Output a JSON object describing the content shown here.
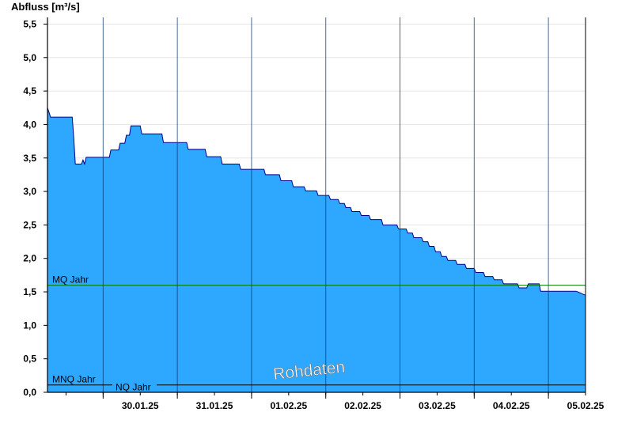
{
  "chart_data": {
    "type": "area",
    "ylabel": "Abfluss [m³/s]",
    "ylim": [
      0,
      5.6
    ],
    "yticks": [
      "0,0",
      "0,5",
      "1,0",
      "1,5",
      "2,0",
      "2,5",
      "3,0",
      "3,5",
      "4,0",
      "4,5",
      "5,0",
      "5,5"
    ],
    "xlim": [
      "29.01.25 06:00",
      "05.02.25 12:00"
    ],
    "day_labels": [
      "30.01.25",
      "31.01.25",
      "01.02.25",
      "02.02.25",
      "03.02.25",
      "04.02.25",
      "05.02.25"
    ],
    "grid": true,
    "series": [
      {
        "fill_color": "#2ea7ff",
        "line_color": "#00008b",
        "points": [
          [
            "29.01.25 06:00",
            4.25
          ],
          [
            "29.01.25 06:30",
            4.18
          ],
          [
            "29.01.25 07:00",
            4.11
          ],
          [
            "29.01.25 14:00",
            4.11
          ],
          [
            "29.01.25 14:30",
            3.8
          ],
          [
            "29.01.25 15:00",
            3.41
          ],
          [
            "29.01.25 17:00",
            3.41
          ],
          [
            "29.01.25 17:30",
            3.47
          ],
          [
            "29.01.25 18:00",
            3.41
          ],
          [
            "29.01.25 18:30",
            3.51
          ],
          [
            "30.01.25 02:00",
            3.51
          ],
          [
            "30.01.25 02:30",
            3.62
          ],
          [
            "30.01.25 05:00",
            3.62
          ],
          [
            "30.01.25 05:30",
            3.72
          ],
          [
            "30.01.25 07:00",
            3.72
          ],
          [
            "30.01.25 07:30",
            3.84
          ],
          [
            "30.01.25 08:30",
            3.84
          ],
          [
            "30.01.25 09:00",
            3.98
          ],
          [
            "30.01.25 12:00",
            3.98
          ],
          [
            "30.01.25 12:30",
            3.86
          ],
          [
            "30.01.25 19:00",
            3.86
          ],
          [
            "30.01.25 19:30",
            3.73
          ],
          [
            "31.01.25 03:00",
            3.73
          ],
          [
            "31.01.25 03:30",
            3.63
          ],
          [
            "31.01.25 09:00",
            3.63
          ],
          [
            "31.01.25 09:30",
            3.52
          ],
          [
            "31.01.25 14:00",
            3.52
          ],
          [
            "31.01.25 14:30",
            3.41
          ],
          [
            "31.01.25 20:00",
            3.41
          ],
          [
            "31.01.25 20:30",
            3.33
          ],
          [
            "01.02.25 04:00",
            3.33
          ],
          [
            "01.02.25 04:30",
            3.25
          ],
          [
            "01.02.25 09:00",
            3.25
          ],
          [
            "01.02.25 09:30",
            3.16
          ],
          [
            "01.02.25 13:00",
            3.16
          ],
          [
            "01.02.25 13:30",
            3.07
          ],
          [
            "01.02.25 17:00",
            3.07
          ],
          [
            "01.02.25 17:30",
            3.01
          ],
          [
            "01.02.25 21:00",
            3.01
          ],
          [
            "01.02.25 21:30",
            2.94
          ],
          [
            "02.02.25 01:00",
            2.94
          ],
          [
            "02.02.25 01:30",
            2.88
          ],
          [
            "02.02.25 04:00",
            2.88
          ],
          [
            "02.02.25 04:30",
            2.82
          ],
          [
            "02.02.25 06:00",
            2.82
          ],
          [
            "02.02.25 06:30",
            2.76
          ],
          [
            "02.02.25 08:00",
            2.76
          ],
          [
            "02.02.25 08:30",
            2.7
          ],
          [
            "02.02.25 11:00",
            2.7
          ],
          [
            "02.02.25 11:30",
            2.64
          ],
          [
            "02.02.25 14:00",
            2.64
          ],
          [
            "02.02.25 14:30",
            2.58
          ],
          [
            "02.02.25 18:00",
            2.58
          ],
          [
            "02.02.25 18:30",
            2.5
          ],
          [
            "02.02.25 23:00",
            2.5
          ],
          [
            "02.02.25 23:30",
            2.44
          ],
          [
            "03.02.25 02:00",
            2.44
          ],
          [
            "03.02.25 02:30",
            2.38
          ],
          [
            "03.02.25 04:00",
            2.38
          ],
          [
            "03.02.25 04:30",
            2.31
          ],
          [
            "03.02.25 07:00",
            2.31
          ],
          [
            "03.02.25 07:30",
            2.25
          ],
          [
            "03.02.25 09:00",
            2.25
          ],
          [
            "03.02.25 09:30",
            2.18
          ],
          [
            "03.02.25 11:00",
            2.18
          ],
          [
            "03.02.25 11:30",
            2.1
          ],
          [
            "03.02.25 13:00",
            2.1
          ],
          [
            "03.02.25 13:30",
            2.03
          ],
          [
            "03.02.25 15:00",
            2.03
          ],
          [
            "03.02.25 15:30",
            1.97
          ],
          [
            "03.02.25 18:00",
            1.97
          ],
          [
            "03.02.25 18:30",
            1.91
          ],
          [
            "03.02.25 21:00",
            1.91
          ],
          [
            "03.02.25 21:30",
            1.85
          ],
          [
            "04.02.25 00:00",
            1.85
          ],
          [
            "04.02.25 00:30",
            1.79
          ],
          [
            "04.02.25 03:00",
            1.79
          ],
          [
            "04.02.25 03:30",
            1.73
          ],
          [
            "04.02.25 06:00",
            1.73
          ],
          [
            "04.02.25 06:30",
            1.68
          ],
          [
            "04.02.25 09:00",
            1.68
          ],
          [
            "04.02.25 09:30",
            1.62
          ],
          [
            "04.02.25 14:00",
            1.62
          ],
          [
            "04.02.25 14:30",
            1.56
          ],
          [
            "04.02.25 17:00",
            1.56
          ],
          [
            "04.02.25 17:30",
            1.62
          ],
          [
            "04.02.25 21:00",
            1.62
          ],
          [
            "04.02.25 21:30",
            1.51
          ],
          [
            "05.02.25 09:00",
            1.51
          ],
          [
            "05.02.25 12:00",
            1.45
          ]
        ]
      }
    ],
    "reference_lines": [
      {
        "label": "MQ Jahr",
        "value": 1.6,
        "color": "#007700"
      },
      {
        "label": "MNQ Jahr",
        "value": 0.11,
        "color": "#000000"
      },
      {
        "label": "NQ Jahr",
        "value": 0.11,
        "color": "#000000"
      }
    ],
    "watermark": "Rohdaten"
  }
}
